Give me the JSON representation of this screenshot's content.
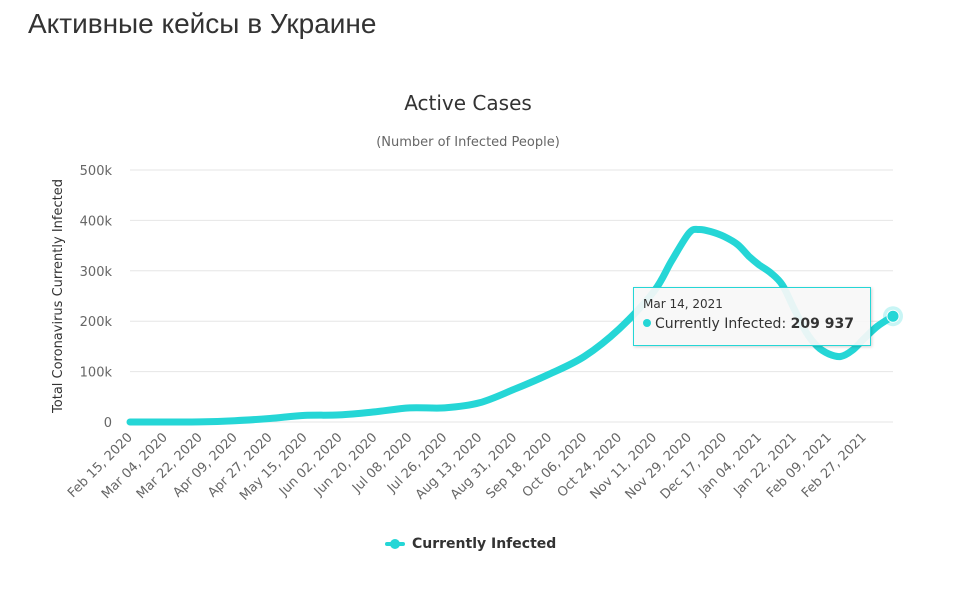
{
  "page": {
    "heading": "Активные кейсы в Украине"
  },
  "colors": {
    "series": "#25d6d6",
    "text": "#333333",
    "axis_text": "#666666",
    "grid": "#e6e6e6"
  },
  "chart_data": {
    "type": "line",
    "title": "Active Cases",
    "subtitle": "(Number of Infected People)",
    "ylabel": "Total Coronavirus Currently Infected",
    "xlabel": "",
    "ylim": [
      0,
      500000
    ],
    "yticks": [
      0,
      100000,
      200000,
      300000,
      400000,
      500000
    ],
    "ytick_labels": [
      "0",
      "100k",
      "200k",
      "300k",
      "400k",
      "500k"
    ],
    "xticks": [
      "Feb 15, 2020",
      "Mar 04, 2020",
      "Mar 22, 2020",
      "Apr 09, 2020",
      "Apr 27, 2020",
      "May 15, 2020",
      "Jun 02, 2020",
      "Jun 20, 2020",
      "Jul 08, 2020",
      "Jul 26, 2020",
      "Aug 13, 2020",
      "Aug 31, 2020",
      "Sep 18, 2020",
      "Oct 06, 2020",
      "Oct 24, 2020",
      "Nov 11, 2020",
      "Nov 29, 2020",
      "Dec 17, 2020",
      "Jan 04, 2021",
      "Jan 22, 2021",
      "Feb 09, 2021",
      "Feb 27, 2021"
    ],
    "grid": true,
    "legend": "bottom-center",
    "series": [
      {
        "name": "Currently Infected",
        "x": [
          "2020-02-15",
          "2020-03-04",
          "2020-03-22",
          "2020-04-09",
          "2020-04-27",
          "2020-05-15",
          "2020-06-02",
          "2020-06-20",
          "2020-07-08",
          "2020-07-26",
          "2020-08-13",
          "2020-08-31",
          "2020-09-18",
          "2020-10-06",
          "2020-10-24",
          "2020-11-11",
          "2020-11-20",
          "2020-11-29",
          "2020-12-04",
          "2020-12-10",
          "2020-12-17",
          "2020-12-24",
          "2020-12-30",
          "2021-01-04",
          "2021-01-10",
          "2021-01-16",
          "2021-01-22",
          "2021-01-28",
          "2021-02-03",
          "2021-02-09",
          "2021-02-15",
          "2021-02-21",
          "2021-02-27",
          "2021-03-06",
          "2021-03-14"
        ],
        "y": [
          0,
          0,
          200,
          2500,
          7000,
          13000,
          14000,
          20000,
          28000,
          28000,
          38000,
          65000,
          95000,
          130000,
          185000,
          260000,
          320000,
          375000,
          382000,
          378000,
          368000,
          352000,
          328000,
          312000,
          296000,
          272000,
          225000,
          180000,
          150000,
          135000,
          130000,
          142000,
          165000,
          190000,
          209937
        ]
      }
    ]
  },
  "tooltip": {
    "date": "Mar 14, 2021",
    "series_label": "Currently Infected: ",
    "value": "209 937"
  }
}
